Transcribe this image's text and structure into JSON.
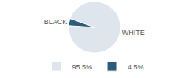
{
  "chart_data": {
    "type": "pie",
    "categories": [
      "WHITE",
      "BLACK"
    ],
    "values": [
      95.5,
      4.5
    ],
    "value_labels": [
      "95.5%",
      "4.5%"
    ],
    "colors": [
      "#dfe5ec",
      "#2d5b7c"
    ],
    "legend": "bottom"
  }
}
